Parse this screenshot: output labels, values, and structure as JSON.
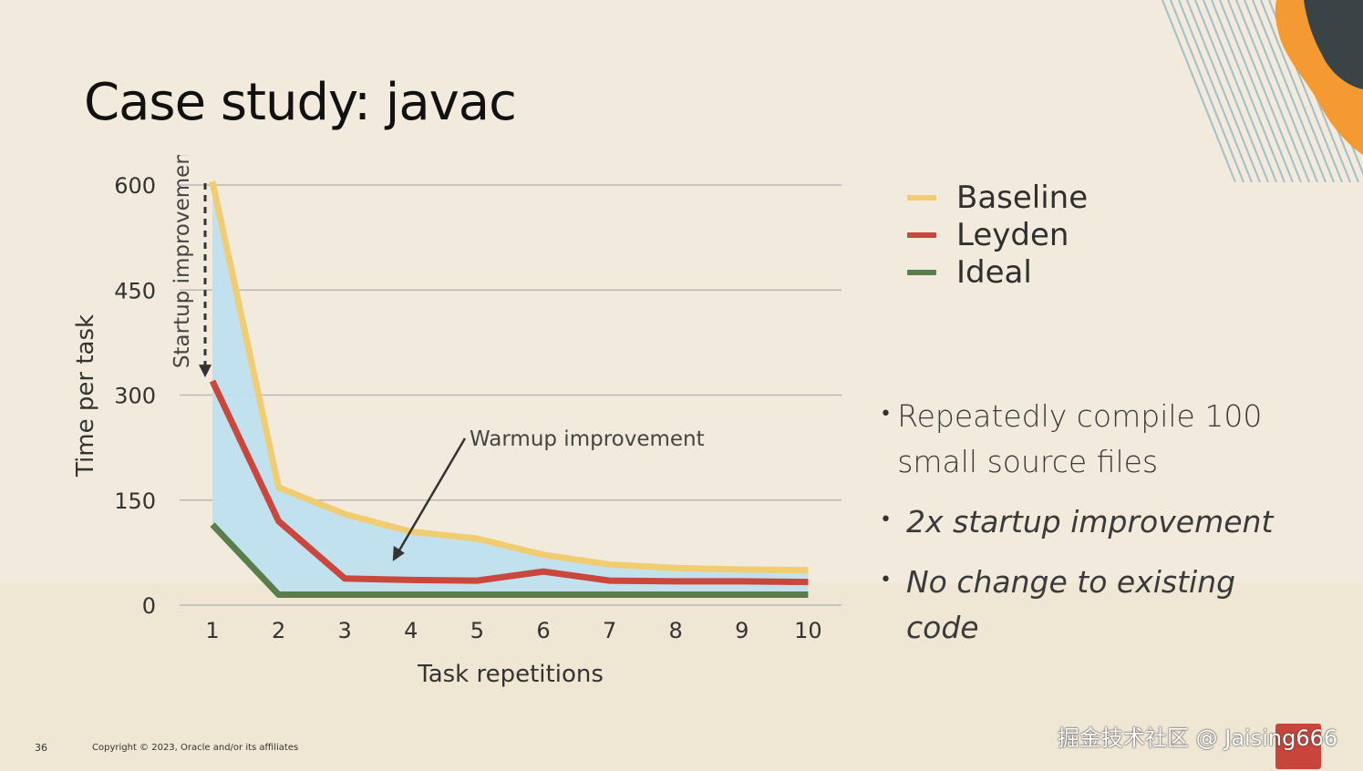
{
  "slide": {
    "title": "Case study: javac",
    "page_number": "36",
    "copyright": "Copyright © 2023, Oracle and/or its affiliates",
    "watermark": "掘金技术社区 @ Jaising666"
  },
  "colors": {
    "background": "#f2ebdd",
    "baseline": "#f0cd73",
    "leyden": "#c9473d",
    "ideal": "#5b7d4b",
    "fill": "#bfe0ee",
    "grid": "#b7b7b7",
    "orange": "#f59a32",
    "dark": "#3a4447",
    "stripes": "#8fb5c2"
  },
  "legend": [
    {
      "label": "Baseline",
      "color": "#f0cd73"
    },
    {
      "label": "Leyden",
      "color": "#c9473d"
    },
    {
      "label": "Ideal",
      "color": "#5b7d4b"
    }
  ],
  "bullets": [
    {
      "text": "Repeatedly compile 100 small source files",
      "italic": false
    },
    {
      "text": "2x startup improvement",
      "italic": true
    },
    {
      "text": "No change to existing code",
      "italic": true
    }
  ],
  "chart_data": {
    "type": "line",
    "title": "",
    "xlabel": "Task repetitions",
    "ylabel": "Time per task",
    "x": [
      1,
      2,
      3,
      4,
      5,
      6,
      7,
      8,
      9,
      10
    ],
    "ylim": [
      0,
      600
    ],
    "yticks": [
      0,
      150,
      300,
      450,
      600
    ],
    "grid": true,
    "series": [
      {
        "name": "Baseline",
        "values": [
          605,
          168,
          130,
          105,
          95,
          72,
          58,
          53,
          51,
          50
        ]
      },
      {
        "name": "Leyden",
        "values": [
          320,
          120,
          38,
          36,
          35,
          48,
          35,
          34,
          34,
          33
        ]
      },
      {
        "name": "Ideal",
        "values": [
          115,
          15,
          15,
          15,
          15,
          15,
          15,
          15,
          15,
          15
        ]
      }
    ],
    "annotations": [
      {
        "text": "Startup improvement",
        "from": {
          "x": 1,
          "y": 600
        },
        "to": {
          "x": 1,
          "y": 320
        }
      },
      {
        "text": "Warmup improvement",
        "points_to": {
          "x": 4,
          "y": 60
        }
      }
    ]
  }
}
